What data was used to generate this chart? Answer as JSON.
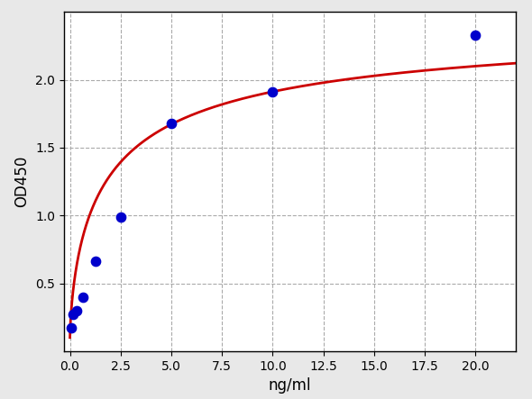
{
  "x_data": [
    0.078,
    0.156,
    0.3125,
    0.625,
    1.25,
    2.5,
    5.0,
    10.0,
    20.0
  ],
  "y_data": [
    0.17,
    0.27,
    0.3,
    0.4,
    0.66,
    0.99,
    1.68,
    1.91,
    2.33
  ],
  "dot_color": "#0000cc",
  "curve_color": "#cc0000",
  "bg_color": "#e8e8e8",
  "plot_bg_color": "#ffffff",
  "xlabel": "ng/ml",
  "ylabel": "OD450",
  "xlim": [
    -0.3,
    22.0
  ],
  "ylim": [
    0.0,
    2.5
  ],
  "xticks": [
    0.0,
    2.5,
    5.0,
    7.5,
    10.0,
    12.5,
    15.0,
    17.5,
    20.0
  ],
  "yticks": [
    0.5,
    1.0,
    1.5,
    2.0
  ],
  "grid_color": "#aaaaaa",
  "dot_size": 55,
  "curve_linewidth": 2.0,
  "xlabel_fontsize": 12,
  "ylabel_fontsize": 12,
  "tick_fontsize": 10
}
